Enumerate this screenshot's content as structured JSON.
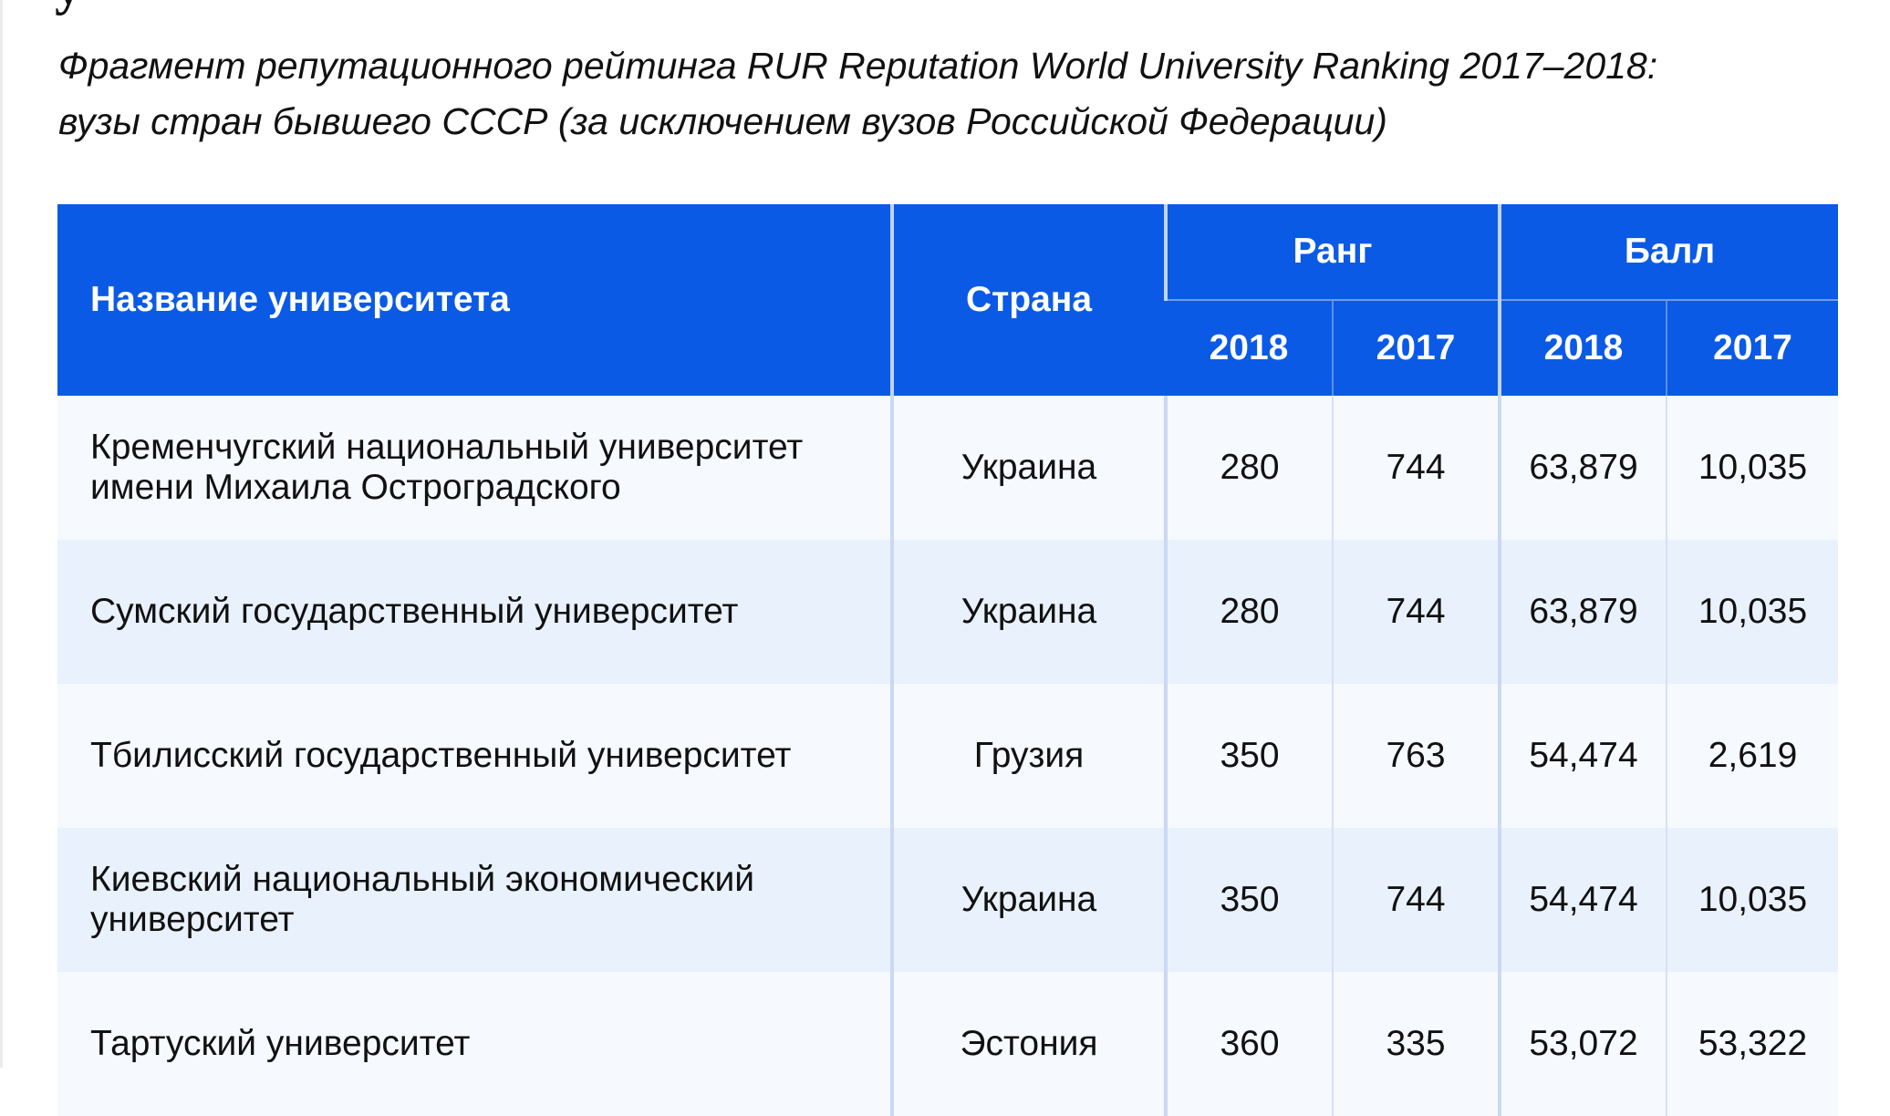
{
  "heading_cut": "                              у",
  "subtitle": {
    "line1": "Фрагмент репутационного рейтинга RUR Reputation World University Ranking 2017–2018:",
    "line2": "вузы стран бывшего СССР (за исключением вузов Российской Федерации)"
  },
  "table": {
    "headers": {
      "name": "Название университета",
      "country": "Страна",
      "rank": "Ранг",
      "score": "Балл",
      "rank_2018": "2018",
      "rank_2017": "2017",
      "score_2018": "2018",
      "score_2017": "2017"
    },
    "rows": [
      {
        "name_line1": "Кременчугский национальный университет",
        "name_line2": "имени Михаила Остроградского",
        "country": "Украина",
        "rank_2018": "280",
        "rank_2017": "744",
        "score_2018": "63,879",
        "score_2017": "10,035"
      },
      {
        "name_line1": "Сумский государственный университет",
        "name_line2": "",
        "country": "Украина",
        "rank_2018": "280",
        "rank_2017": "744",
        "score_2018": "63,879",
        "score_2017": "10,035"
      },
      {
        "name_line1": "Тбилисский государственный университет",
        "name_line2": "",
        "country": "Грузия",
        "rank_2018": "350",
        "rank_2017": "763",
        "score_2018": "54,474",
        "score_2017": "2,619"
      },
      {
        "name_line1": "Киевский национальный экономический",
        "name_line2": "университет",
        "country": "Украина",
        "rank_2018": "350",
        "rank_2017": "744",
        "score_2018": "54,474",
        "score_2017": "10,035"
      },
      {
        "name_line1": "Тартуский университет",
        "name_line2": "",
        "country": "Эстония",
        "rank_2018": "360",
        "rank_2017": "335",
        "score_2018": "53,072",
        "score_2017": "53,322"
      }
    ]
  }
}
